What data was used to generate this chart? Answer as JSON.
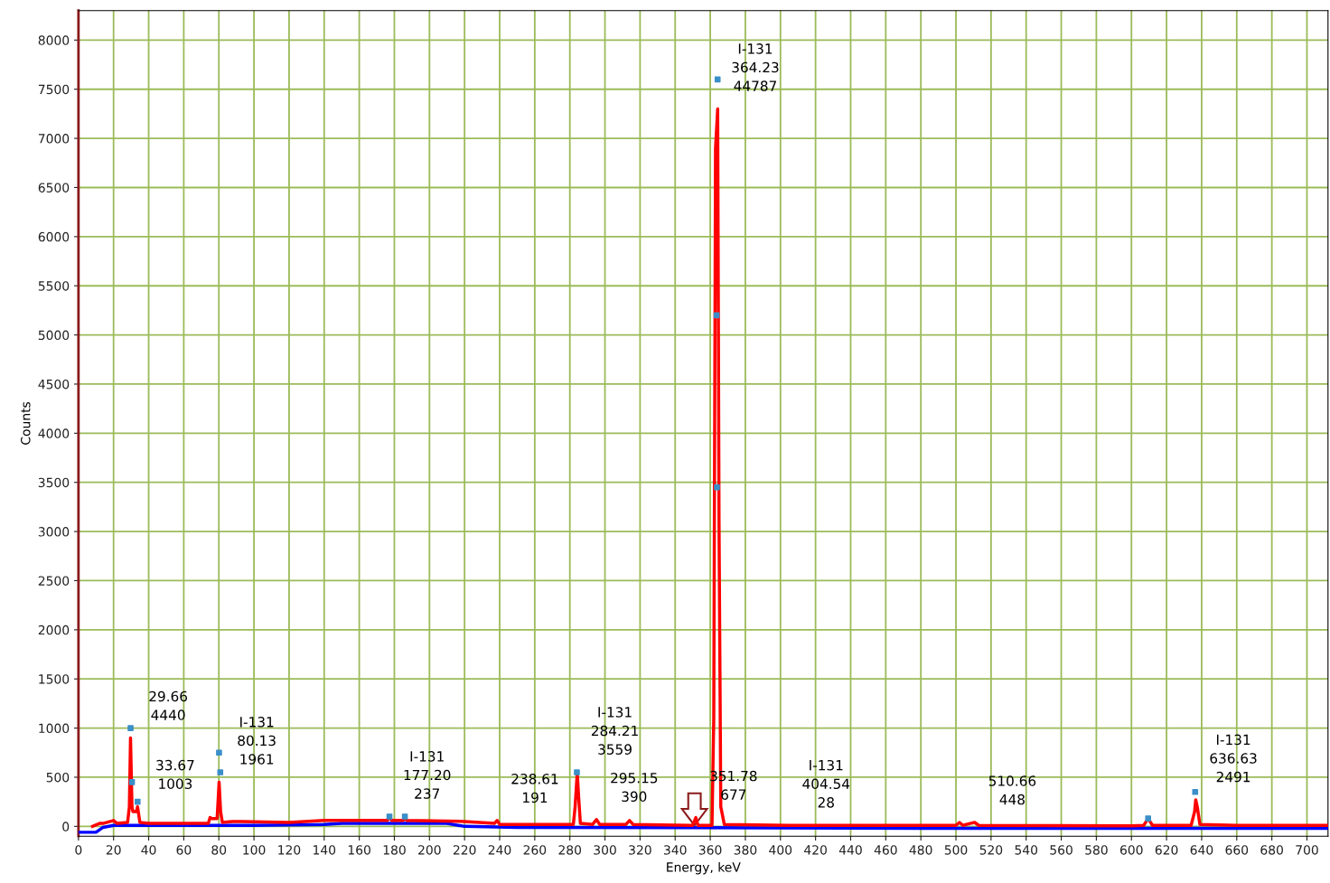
{
  "chart_data": {
    "type": "line",
    "xlabel": "Energy, keV",
    "ylabel": "Counts",
    "xlim": [
      0,
      712
    ],
    "ylim": [
      -100,
      8300
    ],
    "xticks": [
      0,
      20,
      40,
      60,
      80,
      100,
      120,
      140,
      160,
      180,
      200,
      220,
      240,
      260,
      280,
      300,
      320,
      340,
      360,
      380,
      400,
      420,
      440,
      460,
      480,
      500,
      520,
      540,
      560,
      580,
      600,
      620,
      640,
      660,
      680,
      700
    ],
    "yticks": [
      0,
      500,
      1000,
      1500,
      2000,
      2500,
      3000,
      3500,
      4000,
      4500,
      5000,
      5500,
      6000,
      6500,
      7000,
      7500,
      8000
    ],
    "grid": true,
    "line_style": "solid",
    "series": [
      {
        "color": "#0000ff",
        "x": [
          0,
          10,
          14,
          20,
          100,
          140,
          150,
          210,
          220,
          250,
          500,
          712
        ],
        "values": [
          -60,
          -60,
          -10,
          10,
          10,
          20,
          30,
          30,
          0,
          -10,
          -20,
          -20
        ]
      },
      {
        "color": "#ff0000",
        "x": [
          8,
          12,
          14,
          20,
          22,
          28,
          29,
          29.66,
          30.5,
          31,
          32,
          33,
          33.67,
          34.5,
          35,
          40,
          74,
          75,
          76,
          79,
          80.13,
          81,
          82,
          88,
          93,
          120,
          140,
          176,
          177.2,
          178.5,
          185,
          186,
          187,
          220,
          237,
          238.61,
          240,
          282,
          283,
          284.21,
          285,
          286,
          293,
          295.15,
          297,
          312,
          314,
          316,
          350,
          351.78,
          353,
          361,
          362,
          363,
          364.23,
          365,
          366,
          368,
          404.54,
          500,
          502,
          504,
          508,
          510.66,
          513,
          600,
          607,
          609.5,
          612,
          634,
          636,
          636.63,
          637.5,
          639,
          660,
          712
        ],
        "values": [
          0,
          30,
          30,
          60,
          30,
          40,
          200,
          900,
          200,
          150,
          150,
          150,
          200,
          100,
          40,
          30,
          30,
          90,
          80,
          80,
          450,
          150,
          40,
          50,
          50,
          40,
          60,
          60,
          100,
          60,
          60,
          100,
          60,
          50,
          30,
          60,
          20,
          20,
          200,
          550,
          300,
          30,
          20,
          70,
          20,
          20,
          60,
          20,
          10,
          90,
          10,
          10,
          1100,
          6900,
          7300,
          3100,
          200,
          20,
          10,
          10,
          40,
          10,
          30,
          40,
          10,
          5,
          10,
          80,
          10,
          10,
          150,
          270,
          200,
          20,
          10,
          10
        ]
      },
      {
        "type": "scatter",
        "marker": "square",
        "color": "#3a8fc8",
        "x": [
          29.7,
          30.5,
          33.7,
          80.1,
          80.8,
          177.2,
          186,
          284,
          364.2,
          363.6,
          363.8,
          609.5,
          636.3
        ],
        "values": [
          1000,
          450,
          250,
          750,
          550,
          100,
          100,
          550,
          7600,
          5200,
          3450,
          80,
          350
        ]
      }
    ],
    "annotations": [
      {
        "text": "29.66\n4440",
        "x": 29.66,
        "y": 900
      },
      {
        "text": "33.67\n1003",
        "x": 33.67,
        "y": 200
      },
      {
        "text": "I-131\n80.13\n1961",
        "x": 80.13,
        "y": 450
      },
      {
        "text": "I-131\n177.20\n237",
        "x": 177.2,
        "y": 100
      },
      {
        "text": "238.61\n191",
        "x": 238.61,
        "y": 60
      },
      {
        "text": "I-131\n284.21\n3559",
        "x": 284.21,
        "y": 550
      },
      {
        "text": "295.15\n390",
        "x": 295.15,
        "y": 70
      },
      {
        "text": "351.78\n677",
        "x": 351.78,
        "y": 90
      },
      {
        "text": "I-131\n404.54\n28",
        "x": 404.54,
        "y": 10
      },
      {
        "text": "510.66\n448",
        "x": 510.66,
        "y": 40
      },
      {
        "text": "I-131\n636.63\n2491",
        "x": 636.63,
        "y": 270
      },
      {
        "text": "I-131\n364.23\n44787",
        "x": 364.23,
        "y": 7300
      }
    ]
  }
}
